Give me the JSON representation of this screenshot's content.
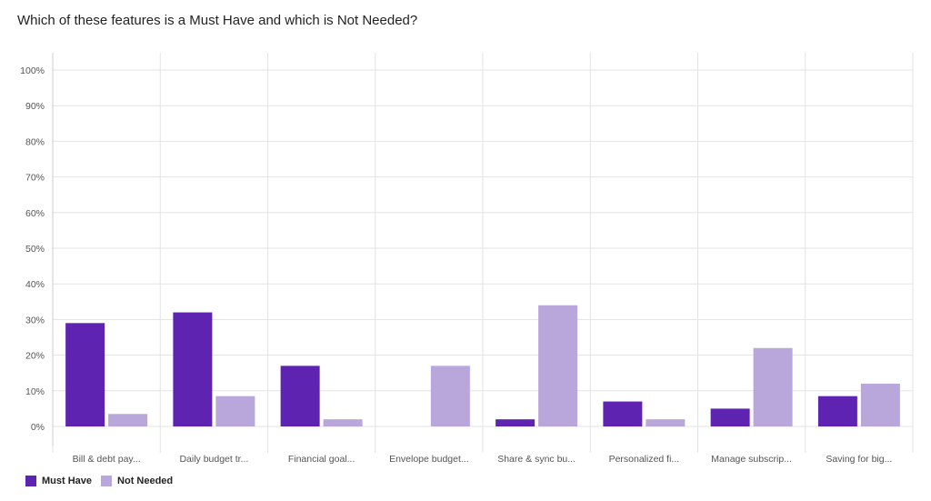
{
  "title": "Which of these features is a Must Have and which is Not Needed?",
  "colors": {
    "must_have": "#5e24b1",
    "not_needed": "#b9a6db",
    "grid": "#e3e3e3",
    "axis_text": "#555555"
  },
  "legend": {
    "items": [
      {
        "label": "Must Have",
        "color": "#5e24b1"
      },
      {
        "label": "Not Needed",
        "color": "#b9a6db"
      }
    ]
  },
  "chart_data": {
    "type": "bar",
    "title": "Which of these features is a Must Have and which is Not Needed?",
    "categories": [
      "Bill & debt pay...",
      "Daily budget tr...",
      "Financial goal...",
      "Envelope budget...",
      "Share & sync bu...",
      "Personalized fi...",
      "Manage subscrip...",
      "Saving for big..."
    ],
    "series": [
      {
        "name": "Must Have",
        "color": "#5e24b1",
        "values": [
          29,
          32,
          17,
          0,
          2,
          7,
          5,
          8.5
        ]
      },
      {
        "name": "Not Needed",
        "color": "#b9a6db",
        "values": [
          3.5,
          8.5,
          2,
          17,
          34,
          2,
          22,
          12
        ]
      }
    ],
    "ylim": [
      0,
      100
    ],
    "yticks": [
      "0%",
      "10%",
      "20%",
      "30%",
      "40%",
      "50%",
      "60%",
      "70%",
      "80%",
      "90%",
      "100%"
    ],
    "xlabel": "",
    "ylabel": "",
    "grid": true,
    "legend_position": "bottom-left"
  }
}
